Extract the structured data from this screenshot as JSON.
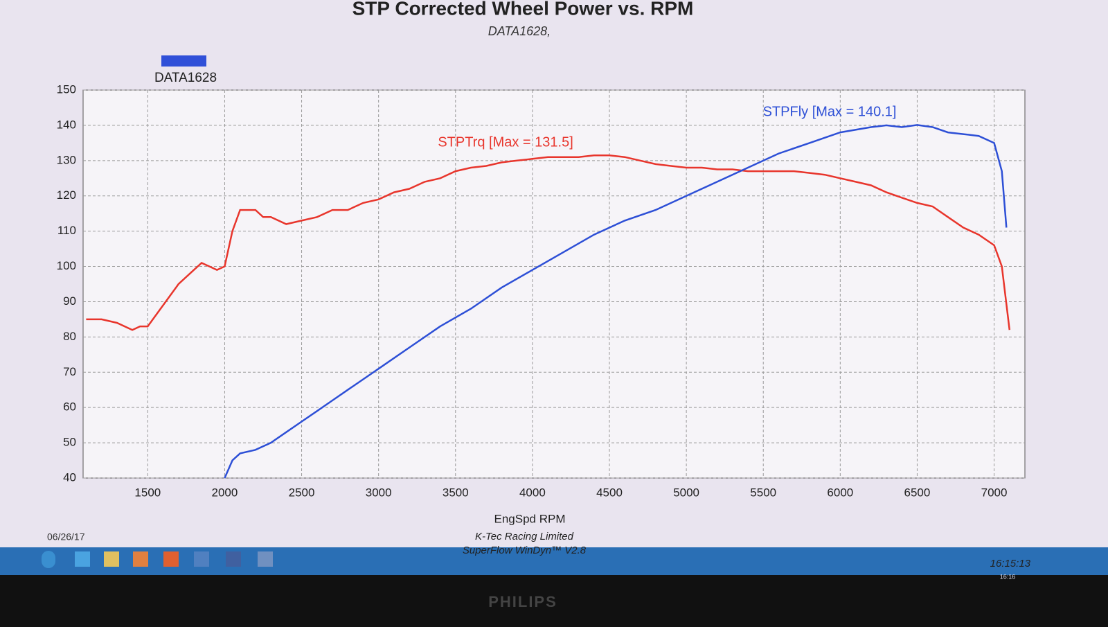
{
  "chart_data": {
    "type": "line",
    "title": "STP Corrected Wheel Power vs. RPM",
    "subtitle": "DATA1628,",
    "legend": {
      "label": "DATA1628",
      "color": "#3050d8"
    },
    "xlabel": "EngSpd RPM",
    "xlim": [
      1080,
      7200
    ],
    "ylim": [
      40,
      150
    ],
    "xticks": [
      1500,
      2000,
      2500,
      3000,
      3500,
      4000,
      4500,
      5000,
      5500,
      6000,
      6500,
      7000
    ],
    "yticks": [
      40,
      50,
      60,
      70,
      80,
      90,
      100,
      110,
      120,
      130,
      140,
      150
    ],
    "grid": true,
    "series": [
      {
        "name": "STPTrq",
        "color": "#e8352c",
        "annotation": "STPTrq [Max = 131.5]",
        "x": [
          1100,
          1200,
          1300,
          1400,
          1450,
          1500,
          1600,
          1700,
          1800,
          1850,
          1900,
          1950,
          2000,
          2050,
          2100,
          2200,
          2250,
          2300,
          2400,
          2500,
          2600,
          2700,
          2800,
          2900,
          3000,
          3100,
          3200,
          3300,
          3400,
          3500,
          3600,
          3700,
          3800,
          3900,
          4000,
          4100,
          4200,
          4300,
          4400,
          4500,
          4600,
          4700,
          4800,
          4900,
          5000,
          5100,
          5200,
          5300,
          5400,
          5500,
          5600,
          5700,
          5800,
          5900,
          6000,
          6100,
          6200,
          6300,
          6400,
          6500,
          6600,
          6700,
          6800,
          6900,
          7000,
          7050,
          7100
        ],
        "values": [
          85,
          85,
          84,
          82,
          83,
          83,
          89,
          95,
          99,
          101,
          100,
          99,
          100,
          110,
          116,
          116,
          114,
          114,
          112,
          113,
          114,
          116,
          116,
          118,
          119,
          121,
          122,
          124,
          125,
          127,
          128,
          128.5,
          129.5,
          130,
          130.5,
          131,
          131,
          131,
          131.5,
          131.5,
          131,
          130,
          129,
          128.5,
          128,
          128,
          127.5,
          127.5,
          127,
          127,
          127,
          127,
          126.5,
          126,
          125,
          124,
          123,
          121,
          119.5,
          118,
          117,
          114,
          111,
          109,
          106,
          100,
          82
        ]
      },
      {
        "name": "STPFly",
        "color": "#2d4fd6",
        "annotation": "STPFly [Max = 140.1]",
        "x": [
          2000,
          2050,
          2100,
          2200,
          2300,
          2400,
          2500,
          2600,
          2700,
          2800,
          2900,
          3000,
          3200,
          3400,
          3600,
          3800,
          4000,
          4200,
          4400,
          4600,
          4800,
          5000,
          5200,
          5400,
          5600,
          5800,
          6000,
          6200,
          6300,
          6400,
          6500,
          6600,
          6700,
          6800,
          6900,
          7000,
          7050,
          7080
        ],
        "values": [
          40,
          45,
          47,
          48,
          50,
          53,
          56,
          59,
          62,
          65,
          68,
          71,
          77,
          83,
          88,
          94,
          99,
          104,
          109,
          113,
          116,
          120,
          124,
          128,
          132,
          135,
          138,
          139.5,
          140,
          139.5,
          140.1,
          139.5,
          138,
          137.5,
          137,
          135,
          127,
          111
        ]
      }
    ],
    "footer": {
      "date": "06/26/17",
      "company": "K-Tec Racing Limited",
      "software": "SuperFlow WinDyn™ V2.8",
      "time": "16:15:13"
    }
  },
  "taskbar": {
    "clock": "16:16"
  },
  "monitor": {
    "brand": "PHILIPS"
  }
}
